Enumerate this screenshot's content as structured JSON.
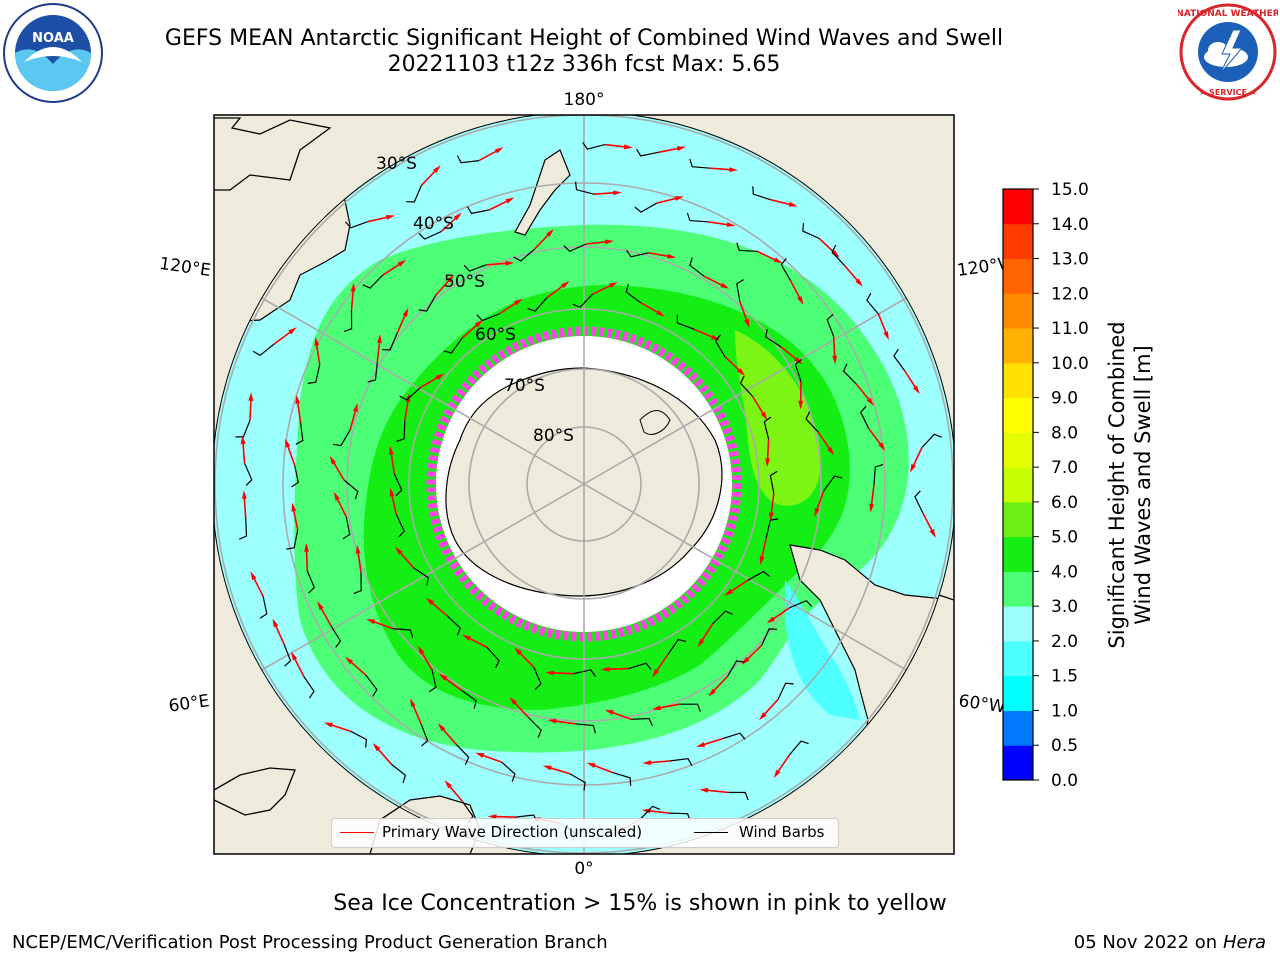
{
  "header": {
    "title_line1": "GEFS MEAN Antarctic Significant Height of Combined Wind Waves and Swell",
    "title_line2": "20221103 t12z 336h fcst   Max: 5.65"
  },
  "logos": {
    "left": "NOAA",
    "right": "NATIONAL WEATHER SERVICE"
  },
  "map": {
    "projection": "south-polar-stereographic",
    "lat_labels": [
      "30°S",
      "40°S",
      "50°S",
      "60°S",
      "70°S",
      "80°S"
    ],
    "lon_labels": {
      "top": "180°",
      "bottom": "0°",
      "upper_left": "120°E",
      "upper_right": "120°W",
      "lower_left": "60°E",
      "lower_right": "60°W"
    },
    "colors": {
      "land": "#efebdc",
      "ocean_low": "#9effff",
      "ocean_mid": "#4dff77",
      "ocean_high": "#14ee14",
      "peak": "#7cf514",
      "ice_edge": "#ff44e8"
    }
  },
  "legend": {
    "wave_label": "Primary Wave Direction (unscaled)",
    "barb_label": "Wind Barbs",
    "wave_color": "#ff0000",
    "barb_color": "#000000"
  },
  "colorbar": {
    "label_line1": "Significant Height of Combined",
    "label_line2": "Wind Waves and Swell [m]",
    "ticks": [
      "0.0",
      "0.5",
      "1.0",
      "1.5",
      "2.0",
      "3.0",
      "4.0",
      "5.0",
      "6.0",
      "7.0",
      "8.0",
      "9.0",
      "10.0",
      "11.0",
      "12.0",
      "13.0",
      "14.0",
      "15.0"
    ],
    "colors": [
      "#0000ff",
      "#0077ff",
      "#00ffff",
      "#4dffff",
      "#9effff",
      "#4dff77",
      "#14ee14",
      "#6cf014",
      "#c8ff00",
      "#e6ff00",
      "#ffff00",
      "#ffe000",
      "#ffb300",
      "#ff8c00",
      "#ff6400",
      "#ff3c00",
      "#ff0000"
    ]
  },
  "footer": {
    "sea_ice_note": "Sea Ice Concentration > 15% is shown in pink to yellow",
    "credit": "NCEP/EMC/Verification Post Processing Product Generation Branch",
    "date": "05 Nov 2022 on",
    "host": "Hera"
  }
}
